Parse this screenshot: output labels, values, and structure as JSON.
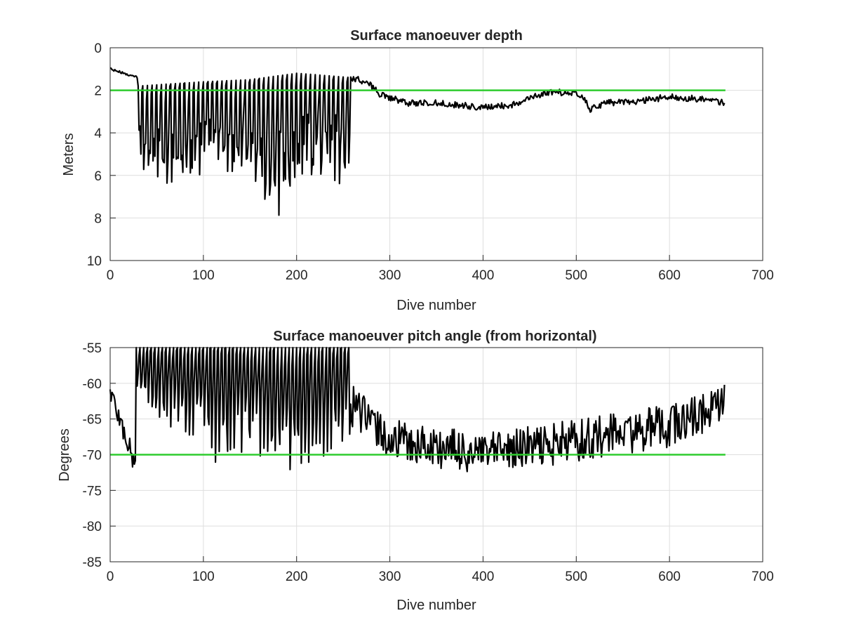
{
  "colors": {
    "series": "#000000",
    "reference": "#2ecc2e",
    "grid": "#dedede",
    "axis": "#262626",
    "background": "#ffffff"
  },
  "chart_data": [
    {
      "type": "line",
      "title": "Surface manoeuver depth",
      "xlabel": "Dive number",
      "ylabel": "Meters",
      "xlim": [
        0,
        700
      ],
      "ylim": [
        0,
        10
      ],
      "y_reversed": true,
      "grid": true,
      "xticks": [
        "0",
        "100",
        "200",
        "300",
        "400",
        "500",
        "600",
        "700"
      ],
      "yticks": [
        "0",
        "2",
        "4",
        "6",
        "8",
        "10"
      ],
      "reference_line": {
        "y": 2,
        "x": [
          0,
          660
        ]
      },
      "regimes": [
        {
          "x_start": 0,
          "x_end": 30,
          "style": "drift",
          "y_start": 1.0,
          "y_end": 1.4,
          "jitter": 0.05
        },
        {
          "x_start": 30,
          "x_end": 258,
          "style": "oscillating",
          "period": 5,
          "shallow": [
            [
              30,
              1.8
            ],
            [
              100,
              1.6
            ],
            [
              150,
              1.5
            ],
            [
              200,
              1.2
            ],
            [
              258,
              1.4
            ]
          ],
          "deep": [
            [
              30,
              5.5
            ],
            [
              50,
              6.5
            ],
            [
              80,
              6.6
            ],
            [
              110,
              6.0
            ],
            [
              150,
              6.2
            ],
            [
              178,
              8.4
            ],
            [
              200,
              7.0
            ],
            [
              230,
              6.0
            ],
            [
              255,
              6.8
            ]
          ]
        },
        {
          "x_start": 258,
          "x_end": 660,
          "style": "noisy",
          "baseline": [
            [
              258,
              1.4
            ],
            [
              275,
              1.6
            ],
            [
              290,
              2.2
            ],
            [
              320,
              2.6
            ],
            [
              350,
              2.6
            ],
            [
              400,
              2.8
            ],
            [
              430,
              2.7
            ],
            [
              455,
              2.3
            ],
            [
              470,
              2.1
            ],
            [
              500,
              2.1
            ],
            [
              510,
              2.5
            ],
            [
              515,
              2.9
            ],
            [
              530,
              2.6
            ],
            [
              570,
              2.5
            ],
            [
              600,
              2.3
            ],
            [
              630,
              2.4
            ],
            [
              660,
              2.6
            ]
          ],
          "jitter": 0.15
        }
      ]
    },
    {
      "type": "line",
      "title": "Surface manoeuver pitch angle (from horizontal)",
      "xlabel": "Dive number",
      "ylabel": "Degrees",
      "xlim": [
        0,
        700
      ],
      "ylim": [
        -85,
        -55
      ],
      "grid": true,
      "xticks": [
        "0",
        "100",
        "200",
        "300",
        "400",
        "500",
        "600",
        "700"
      ],
      "yticks": [
        "-55",
        "-60",
        "-65",
        "-70",
        "-75",
        "-80",
        "-85"
      ],
      "reference_line": {
        "y": -70,
        "x": [
          0,
          660
        ]
      },
      "regimes": [
        {
          "x_start": 0,
          "x_end": 28,
          "style": "noisy",
          "baseline": [
            [
              0,
              -61
            ],
            [
              10,
              -65
            ],
            [
              18,
              -68
            ],
            [
              25,
              -71
            ],
            [
              28,
              -70
            ]
          ],
          "jitter": 1.6
        },
        {
          "x_start": 28,
          "x_end": 258,
          "style": "oscillating",
          "period": 4,
          "shallow": [
            [
              28,
              -55
            ],
            [
              258,
              -55
            ]
          ],
          "deep": [
            [
              28,
              -62
            ],
            [
              60,
              -66
            ],
            [
              90,
              -68
            ],
            [
              120,
              -73
            ],
            [
              150,
              -70
            ],
            [
              180,
              -72
            ],
            [
              210,
              -73
            ],
            [
              240,
              -70
            ],
            [
              258,
              -67
            ]
          ]
        },
        {
          "x_start": 258,
          "x_end": 660,
          "style": "noisy",
          "baseline": [
            [
              258,
              -63
            ],
            [
              300,
              -68
            ],
            [
              350,
              -69
            ],
            [
              400,
              -70
            ],
            [
              450,
              -69
            ],
            [
              500,
              -68
            ],
            [
              550,
              -67
            ],
            [
              600,
              -66
            ],
            [
              660,
              -63
            ]
          ],
          "jitter": 3.0
        }
      ]
    }
  ]
}
